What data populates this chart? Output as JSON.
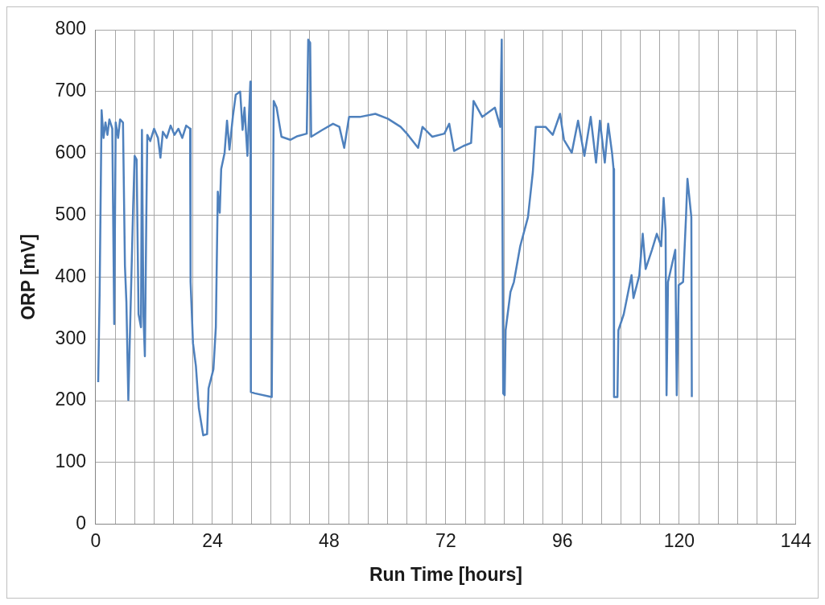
{
  "chart_data": {
    "type": "line",
    "xlabel": "Run Time [hours]",
    "ylabel": "ORP [mV]",
    "xlim": [
      0,
      144
    ],
    "ylim": [
      0,
      800
    ],
    "xticks": [
      0,
      {
        "value": 4,
        "label": null
      },
      {
        "value": 8,
        "label": null
      },
      {
        "value": 12,
        "label": null
      },
      {
        "value": 16,
        "label": null
      },
      {
        "value": 20,
        "label": null
      },
      24,
      {
        "value": 28,
        "label": null
      },
      {
        "value": 32,
        "label": null
      },
      {
        "value": 36,
        "label": null
      },
      {
        "value": 40,
        "label": null
      },
      {
        "value": 44,
        "label": null
      },
      48,
      {
        "value": 52,
        "label": null
      },
      {
        "value": 56,
        "label": null
      },
      {
        "value": 60,
        "label": null
      },
      {
        "value": 64,
        "label": null
      },
      {
        "value": 68,
        "label": null
      },
      72,
      {
        "value": 76,
        "label": null
      },
      {
        "value": 80,
        "label": null
      },
      {
        "value": 84,
        "label": null
      },
      {
        "value": 88,
        "label": null
      },
      {
        "value": 92,
        "label": null
      },
      96,
      {
        "value": 100,
        "label": null
      },
      {
        "value": 104,
        "label": null
      },
      {
        "value": 108,
        "label": null
      },
      {
        "value": 112,
        "label": null
      },
      {
        "value": 116,
        "label": null
      },
      120,
      {
        "value": 124,
        "label": null
      },
      {
        "value": 128,
        "label": null
      },
      {
        "value": 132,
        "label": null
      },
      {
        "value": 136,
        "label": null
      },
      {
        "value": 140,
        "label": null
      },
      144
    ],
    "yticks": [
      0,
      100,
      200,
      300,
      400,
      500,
      600,
      700,
      800
    ],
    "grid": true,
    "legend": false,
    "marker": "none",
    "line_style": "solid",
    "series": [
      {
        "color": "#4f81bd",
        "x": [
          0.5,
          0.8,
          1.2,
          1.6,
          2.0,
          2.4,
          2.8,
          3.4,
          3.8,
          4.1,
          4.6,
          5.0,
          5.6,
          6.0,
          6.3,
          6.7,
          7.0,
          7.7,
          8.0,
          8.4,
          8.8,
          9.3,
          9.5,
          9.8,
          10.1,
          10.4,
          10.6,
          11.2,
          12.0,
          12.8,
          13.3,
          13.8,
          14.6,
          15.4,
          16.2,
          17.0,
          17.8,
          18.6,
          19.4,
          19.5,
          20.0,
          20.6,
          21.2,
          22.1,
          22.9,
          23.2,
          24.2,
          24.7,
          25.1,
          25.5,
          25.8,
          26.5,
          27.0,
          27.5,
          28.2,
          28.8,
          29.7,
          30.2,
          30.6,
          31.2,
          31.5,
          31.8,
          31.9,
          32.7,
          36.2,
          36.6,
          37.2,
          38.2,
          40.0,
          41.5,
          43.4,
          43.7,
          44.1,
          44.3,
          46.6,
          48.8,
          50.1,
          51.1,
          52.1,
          54.3,
          57.5,
          60.1,
          62.7,
          64.0,
          66.3,
          67.2,
          69.2,
          71.7,
          72.7,
          73.7,
          75.6,
          77.2,
          77.7,
          79.5,
          82.1,
          83.2,
          83.5,
          83.8,
          84.1,
          84.3,
          85.3,
          86.0,
          87.3,
          88.9,
          89.9,
          90.5,
          92.5,
          94.0,
          95.5,
          96.3,
          97.9,
          99.2,
          100.5,
          101.8,
          102.9,
          103.7,
          104.7,
          105.4,
          106.2,
          106.5,
          106.6,
          107.3,
          107.5,
          108.6,
          110.2,
          110.6,
          111.8,
          112.5,
          113.1,
          114.4,
          115.4,
          116.3,
          116.8,
          117.2,
          117.4,
          117.7,
          119.2,
          119.5,
          119.9,
          120.8,
          121.4,
          121.7,
          122.5,
          122.6
        ],
        "values": [
          230,
          376,
          670,
          625,
          650,
          630,
          655,
          640,
          324,
          650,
          625,
          655,
          650,
          418,
          360,
          201,
          298,
          517,
          596,
          590,
          340,
          319,
          638,
          340,
          272,
          497,
          630,
          620,
          640,
          625,
          593,
          635,
          625,
          645,
          630,
          640,
          625,
          645,
          640,
          392,
          293,
          256,
          188,
          144,
          146,
          220,
          251,
          319,
          538,
          504,
          575,
          601,
          653,
          606,
          660,
          695,
          700,
          638,
          674,
          596,
          659,
          716,
          214,
          212,
          206,
          685,
          674,
          627,
          622,
          628,
          632,
          784,
          779,
          627,
          638,
          648,
          643,
          609,
          659,
          659,
          664,
          656,
          643,
          632,
          609,
          643,
          627,
          632,
          648,
          604,
          612,
          617,
          685,
          659,
          674,
          643,
          784,
          212,
          209,
          314,
          376,
          392,
          450,
          497,
          570,
          643,
          643,
          630,
          664,
          622,
          601,
          653,
          596,
          659,
          585,
          653,
          585,
          648,
          600,
          575,
          206,
          206,
          314,
          340,
          403,
          366,
          403,
          470,
          413,
          444,
          470,
          450,
          528,
          476,
          209,
          392,
          444,
          209,
          387,
          392,
          497,
          559,
          497,
          206
        ]
      }
    ]
  }
}
